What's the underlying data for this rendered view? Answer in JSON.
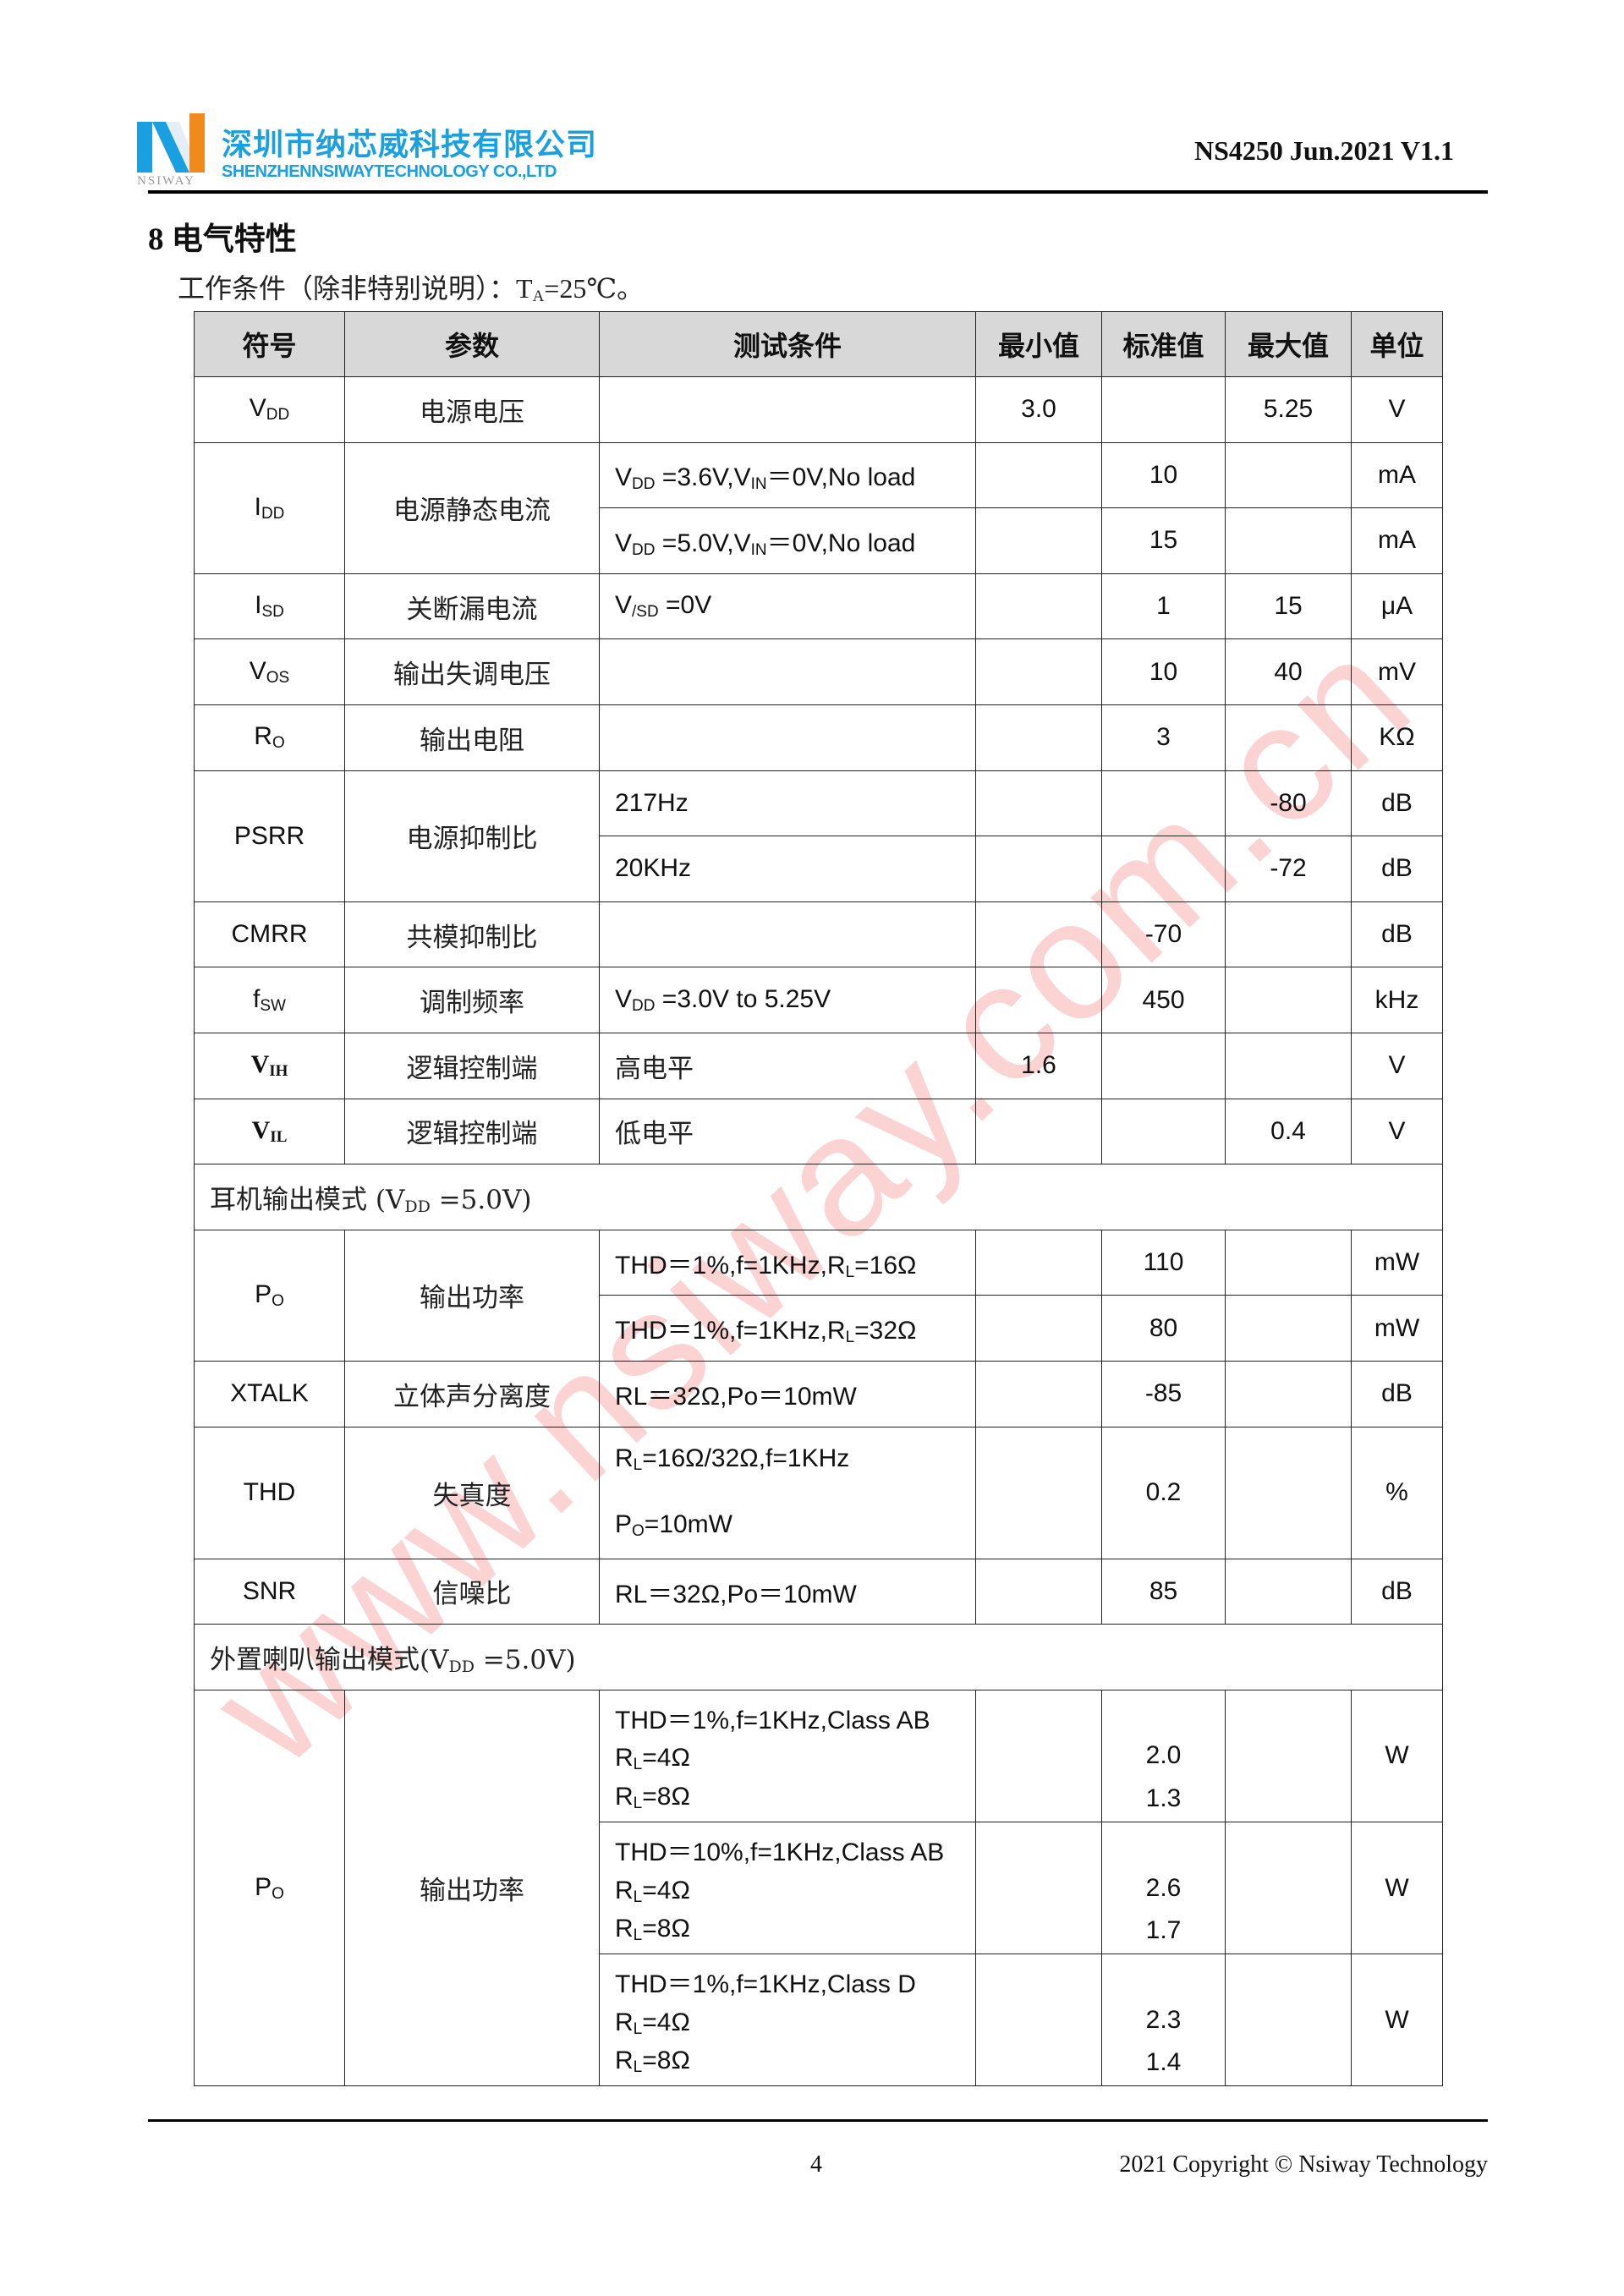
{
  "header": {
    "company_cn": "深圳市纳芯威科技有限公司",
    "company_en": "SHENZHENNSIWAYTECHNOLOGY CO.,LTD",
    "logo_text": "NSIWAY",
    "doc_id": "NS4250 Jun.2021 V1.1",
    "brand_colors": {
      "blue": "#1aa0e0",
      "orange": "#f08a1c"
    }
  },
  "section_title": "8 电气特性",
  "conditions": "工作条件（除非特别说明）：T_{A}=25℃。",
  "watermark": "www.nsiway.com.cn",
  "table": {
    "headers": [
      "符号",
      "参数",
      "测试条件",
      "最小值",
      "标准值",
      "最大值",
      "单位"
    ],
    "rows": [
      {
        "symbol": "V_{DD}",
        "param": "电源电压",
        "subs": [
          {
            "cond": [
              ""
            ],
            "min": [
              "3.0"
            ],
            "typ": [
              ""
            ],
            "max": [
              "5.25"
            ],
            "unit": "V",
            "h": 1
          }
        ]
      },
      {
        "symbol": "I_{DD}",
        "param": "电源静态电流",
        "subs": [
          {
            "cond": [
              "V_{DD} =3.6V,V_{IN}＝0V,No load"
            ],
            "min": [
              ""
            ],
            "typ": [
              "10"
            ],
            "max": [
              ""
            ],
            "unit": "mA",
            "h": 1
          },
          {
            "cond": [
              "V_{DD} =5.0V,V_{IN}＝0V,No load"
            ],
            "min": [
              ""
            ],
            "typ": [
              "15"
            ],
            "max": [
              ""
            ],
            "unit": "mA",
            "h": 1
          }
        ]
      },
      {
        "symbol": "I_{SD}",
        "param": "关断漏电流",
        "subs": [
          {
            "cond": [
              "V_{/SD} =0V"
            ],
            "min": [
              ""
            ],
            "typ": [
              "1"
            ],
            "max": [
              "15"
            ],
            "unit": "μA",
            "h": 1
          }
        ]
      },
      {
        "symbol": "V_{OS}",
        "param": "输出失调电压",
        "subs": [
          {
            "cond": [
              ""
            ],
            "min": [
              ""
            ],
            "typ": [
              "10"
            ],
            "max": [
              "40"
            ],
            "unit": "mV",
            "h": 1
          }
        ]
      },
      {
        "symbol": "R_{O}",
        "param": "输出电阻",
        "subs": [
          {
            "cond": [
              ""
            ],
            "min": [
              ""
            ],
            "typ": [
              "3"
            ],
            "max": [
              ""
            ],
            "unit": "KΩ",
            "h": 1
          }
        ]
      },
      {
        "symbol": "PSRR",
        "param": "电源抑制比",
        "subs": [
          {
            "cond": [
              "217Hz"
            ],
            "min": [
              ""
            ],
            "typ": [
              ""
            ],
            "max": [
              "-80"
            ],
            "unit": "dB",
            "h": 1
          },
          {
            "cond": [
              "20KHz"
            ],
            "min": [
              ""
            ],
            "typ": [
              ""
            ],
            "max": [
              "-72"
            ],
            "unit": "dB",
            "h": 1
          }
        ]
      },
      {
        "symbol": "CMRR",
        "param": "共模抑制比",
        "subs": [
          {
            "cond": [
              ""
            ],
            "min": [
              ""
            ],
            "typ": [
              "-70"
            ],
            "max": [
              ""
            ],
            "unit": "dB",
            "h": 1
          }
        ]
      },
      {
        "symbol": "f_{SW}",
        "param": "调制频率",
        "subs": [
          {
            "cond": [
              "V_{DD} =3.0V to 5.25V"
            ],
            "min": [
              ""
            ],
            "typ": [
              "450"
            ],
            "max": [
              ""
            ],
            "unit": "kHz",
            "h": 1
          }
        ]
      },
      {
        "symbol": "V_{IH}",
        "serif": true,
        "param": "逻辑控制端",
        "subs": [
          {
            "cond": [
              "高电平"
            ],
            "cn": true,
            "min": [
              "1.6"
            ],
            "typ": [
              ""
            ],
            "max": [
              ""
            ],
            "unit": "V",
            "h": 1
          }
        ]
      },
      {
        "symbol": "V_{IL}",
        "serif": true,
        "param": "逻辑控制端",
        "subs": [
          {
            "cond": [
              "低电平"
            ],
            "cn": true,
            "min": [
              ""
            ],
            "typ": [
              ""
            ],
            "max": [
              "0.4"
            ],
            "unit": "V",
            "h": 1
          }
        ]
      },
      {
        "section": "耳机输出模式 (V_{DD} =5.0V)"
      },
      {
        "symbol": "P_{O}",
        "param": "输出功率",
        "subs": [
          {
            "cond": [
              "THD＝1%,f=1KHz,R_{L}=16Ω"
            ],
            "min": [
              ""
            ],
            "typ": [
              "110"
            ],
            "max": [
              ""
            ],
            "unit": "mW",
            "h": 1
          },
          {
            "cond": [
              "THD＝1%,f=1KHz,R_{L}=32Ω"
            ],
            "min": [
              ""
            ],
            "typ": [
              "80"
            ],
            "max": [
              ""
            ],
            "unit": "mW",
            "h": 1
          }
        ]
      },
      {
        "symbol": "XTALK",
        "param": "立体声分离度",
        "subs": [
          {
            "cond": [
              "RL＝32Ω,Po＝10mW"
            ],
            "min": [
              ""
            ],
            "typ": [
              "-85"
            ],
            "max": [
              ""
            ],
            "unit": "dB",
            "h": 1
          }
        ]
      },
      {
        "symbol": "THD",
        "param": "失真度",
        "subs": [
          {
            "cond": [
              "R_{L}=16Ω/32Ω,f=1KHz",
              "P_{O}=10mW"
            ],
            "min": [
              ""
            ],
            "typ": [
              "0.2"
            ],
            "max": [
              ""
            ],
            "unit": "%",
            "h": 2
          }
        ]
      },
      {
        "symbol": "SNR",
        "param": "信噪比",
        "subs": [
          {
            "cond": [
              "RL＝32Ω,Po＝10mW"
            ],
            "min": [
              ""
            ],
            "typ": [
              "85"
            ],
            "max": [
              ""
            ],
            "unit": "dB",
            "h": 1
          }
        ]
      },
      {
        "section": "外置喇叭输出模式(V_{DD} =5.0V)"
      },
      {
        "symbol": "P_{O}",
        "param": "输出功率",
        "subs": [
          {
            "cond": [
              "THD＝1%,f=1KHz,Class AB",
              "R_{L}=4Ω",
              "R_{L}=8Ω"
            ],
            "min": [
              ""
            ],
            "typ": [
              "",
              "2.0",
              "1.3"
            ],
            "max": [
              ""
            ],
            "unit": "W",
            "h": 2
          },
          {
            "cond": [
              "THD＝10%,f=1KHz,Class AB",
              "R_{L}=4Ω",
              "R_{L}=8Ω"
            ],
            "min": [
              ""
            ],
            "typ": [
              "",
              "2.6",
              "1.7"
            ],
            "max": [
              ""
            ],
            "unit": "W",
            "h": 2
          },
          {
            "cond": [
              "THD＝1%,f=1KHz,Class D",
              "R_{L}=4Ω",
              "R_{L}=8Ω"
            ],
            "min": [
              ""
            ],
            "typ": [
              "",
              "2.3",
              "1.4"
            ],
            "max": [
              ""
            ],
            "unit": "W",
            "h": 2
          }
        ]
      }
    ]
  },
  "footer": {
    "page": "4",
    "copyright": "2021 Copyright © Nsiway Technology"
  }
}
